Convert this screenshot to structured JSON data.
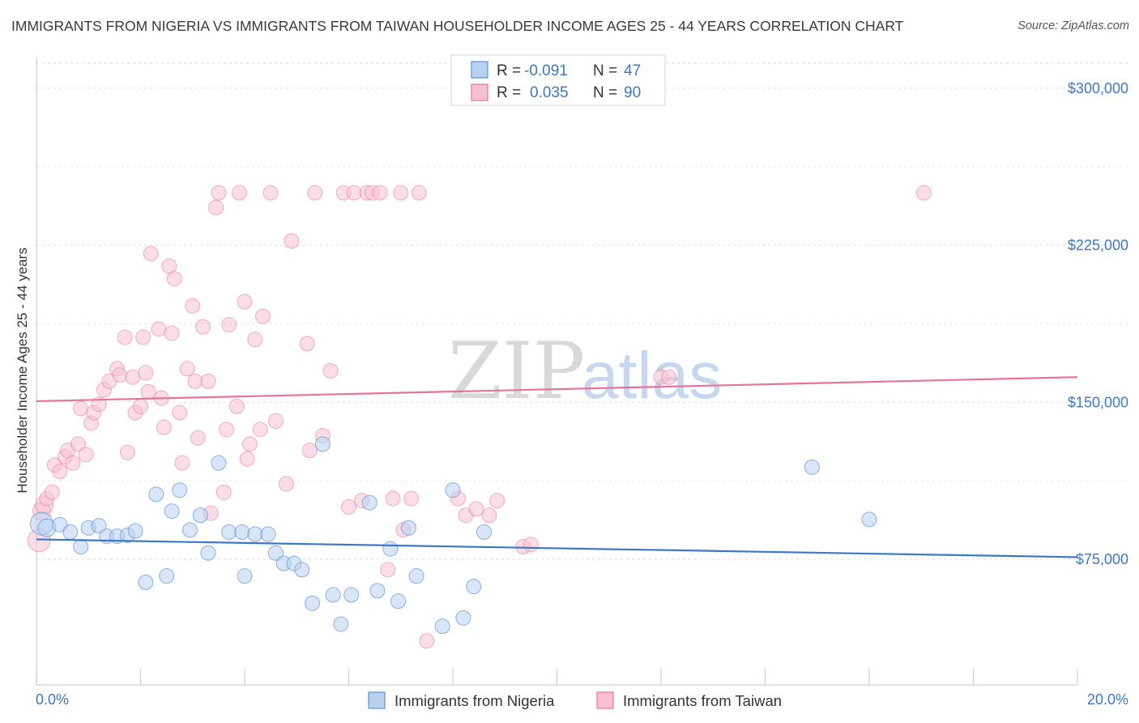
{
  "title": "IMMIGRANTS FROM NIGERIA VS IMMIGRANTS FROM TAIWAN HOUSEHOLDER INCOME AGES 25 - 44 YEARS CORRELATION CHART",
  "source": "Source: ZipAtlas.com",
  "watermark": {
    "zip": "ZIP",
    "atlas": "atlas"
  },
  "colors": {
    "nigeria": "#5b93d9",
    "nigeria_fill": "#b8d1f1",
    "taiwan": "#e8729a",
    "taiwan_fill": "#f7c1d2",
    "axis_text": "#3d78c8"
  },
  "legend_top": [
    {
      "r_label": "R =",
      "r_value": "-0.091",
      "n_label": "N =",
      "n_value": "47"
    },
    {
      "r_label": "R =",
      "r_value": "0.035",
      "n_label": "N =",
      "n_value": "90"
    }
  ],
  "legend_bottom": [
    "Immigrants from Nigeria",
    "Immigrants from Taiwan"
  ],
  "chart_data": {
    "type": "scatter",
    "title": "IMMIGRANTS FROM NIGERIA VS IMMIGRANTS FROM TAIWAN HOUSEHOLDER INCOME AGES 25 - 44 YEARS CORRELATION CHART",
    "xlabel": "",
    "ylabel": "Householder Income Ages 25 - 44 years",
    "xlim": [
      0,
      20
    ],
    "ylim": [
      15000,
      315000
    ],
    "x_tick_labels": [
      "0.0%",
      "20.0%"
    ],
    "y_ticks": [
      75000,
      150000,
      225000,
      300000
    ],
    "y_tick_labels": [
      "$75,000",
      "$150,000",
      "$225,000",
      "$300,000"
    ],
    "series": [
      {
        "name": "Immigrants from Nigeria",
        "r": -0.091,
        "n": 47,
        "trend": {
          "x": [
            0,
            20
          ],
          "y": [
            84500,
            76000
          ]
        },
        "points": [
          [
            0.1,
            92000
          ],
          [
            0.2,
            90000
          ],
          [
            0.45,
            91500
          ],
          [
            0.65,
            88000
          ],
          [
            0.85,
            81000
          ],
          [
            1.0,
            90000
          ],
          [
            1.2,
            91000
          ],
          [
            1.35,
            86000
          ],
          [
            1.55,
            86000
          ],
          [
            1.75,
            86500
          ],
          [
            1.9,
            88500
          ],
          [
            2.1,
            64000
          ],
          [
            2.3,
            106000
          ],
          [
            2.5,
            67000
          ],
          [
            2.6,
            98000
          ],
          [
            2.75,
            108000
          ],
          [
            2.95,
            89000
          ],
          [
            3.15,
            96000
          ],
          [
            3.3,
            78000
          ],
          [
            3.5,
            121000
          ],
          [
            3.7,
            88000
          ],
          [
            3.95,
            88000
          ],
          [
            4.0,
            67000
          ],
          [
            4.2,
            87000
          ],
          [
            4.45,
            87000
          ],
          [
            4.6,
            78000
          ],
          [
            4.75,
            73000
          ],
          [
            4.95,
            73000
          ],
          [
            5.1,
            70000
          ],
          [
            5.3,
            54000
          ],
          [
            5.5,
            130000
          ],
          [
            5.7,
            58000
          ],
          [
            5.85,
            44000
          ],
          [
            6.05,
            58000
          ],
          [
            6.4,
            102000
          ],
          [
            6.55,
            60000
          ],
          [
            6.8,
            80000
          ],
          [
            6.95,
            55000
          ],
          [
            7.15,
            90000
          ],
          [
            7.3,
            67000
          ],
          [
            7.8,
            43000
          ],
          [
            8.0,
            108000
          ],
          [
            8.2,
            47000
          ],
          [
            8.4,
            62000
          ],
          [
            8.6,
            88000
          ],
          [
            14.9,
            119000
          ],
          [
            16.0,
            94000
          ]
        ]
      },
      {
        "name": "Immigrants from Taiwan",
        "r": 0.035,
        "n": 90,
        "trend": {
          "x": [
            0,
            20
          ],
          "y": [
            150500,
            162000
          ]
        },
        "points": [
          [
            0.05,
            84000
          ],
          [
            0.1,
            98000
          ],
          [
            0.15,
            101000
          ],
          [
            0.2,
            104000
          ],
          [
            0.3,
            107000
          ],
          [
            0.35,
            120000
          ],
          [
            0.45,
            117000
          ],
          [
            0.55,
            124000
          ],
          [
            0.6,
            127000
          ],
          [
            0.7,
            121000
          ],
          [
            0.8,
            130000
          ],
          [
            0.85,
            147000
          ],
          [
            0.95,
            125000
          ],
          [
            1.05,
            140000
          ],
          [
            1.1,
            145000
          ],
          [
            1.2,
            149000
          ],
          [
            1.3,
            156000
          ],
          [
            1.4,
            160000
          ],
          [
            1.55,
            166000
          ],
          [
            1.6,
            163000
          ],
          [
            1.7,
            181000
          ],
          [
            1.75,
            126000
          ],
          [
            1.85,
            162000
          ],
          [
            1.9,
            145000
          ],
          [
            2.0,
            148000
          ],
          [
            2.05,
            181000
          ],
          [
            2.1,
            164000
          ],
          [
            2.15,
            155000
          ],
          [
            2.2,
            221000
          ],
          [
            2.35,
            185000
          ],
          [
            2.4,
            152000
          ],
          [
            2.45,
            138000
          ],
          [
            2.55,
            215000
          ],
          [
            2.6,
            183000
          ],
          [
            2.65,
            209000
          ],
          [
            2.75,
            145000
          ],
          [
            2.8,
            121000
          ],
          [
            2.9,
            166000
          ],
          [
            3.0,
            196000
          ],
          [
            3.05,
            160000
          ],
          [
            3.1,
            133000
          ],
          [
            3.2,
            186000
          ],
          [
            3.3,
            160000
          ],
          [
            3.35,
            97000
          ],
          [
            3.45,
            243000
          ],
          [
            3.5,
            250000
          ],
          [
            3.6,
            107000
          ],
          [
            3.65,
            137000
          ],
          [
            3.7,
            187000
          ],
          [
            3.85,
            148000
          ],
          [
            3.9,
            250000
          ],
          [
            4.0,
            198000
          ],
          [
            4.05,
            123000
          ],
          [
            4.1,
            130000
          ],
          [
            4.2,
            180000
          ],
          [
            4.3,
            137000
          ],
          [
            4.35,
            191000
          ],
          [
            4.5,
            250000
          ],
          [
            4.6,
            141000
          ],
          [
            4.8,
            111000
          ],
          [
            4.9,
            227000
          ],
          [
            5.2,
            178000
          ],
          [
            5.25,
            127000
          ],
          [
            5.35,
            250000
          ],
          [
            5.5,
            134000
          ],
          [
            5.65,
            165000
          ],
          [
            5.9,
            250000
          ],
          [
            6.0,
            100000
          ],
          [
            6.1,
            250000
          ],
          [
            6.25,
            103000
          ],
          [
            6.35,
            250000
          ],
          [
            6.45,
            250000
          ],
          [
            6.6,
            250000
          ],
          [
            6.75,
            70000
          ],
          [
            6.85,
            104000
          ],
          [
            7.0,
            250000
          ],
          [
            7.05,
            89000
          ],
          [
            7.2,
            104000
          ],
          [
            7.35,
            250000
          ],
          [
            7.5,
            36000
          ],
          [
            8.1,
            104000
          ],
          [
            8.25,
            96000
          ],
          [
            8.45,
            99000
          ],
          [
            8.7,
            96000
          ],
          [
            8.85,
            103000
          ],
          [
            9.35,
            81000
          ],
          [
            9.5,
            82000
          ],
          [
            12.0,
            162000
          ],
          [
            12.15,
            162000
          ],
          [
            17.05,
            250000
          ]
        ]
      }
    ]
  }
}
